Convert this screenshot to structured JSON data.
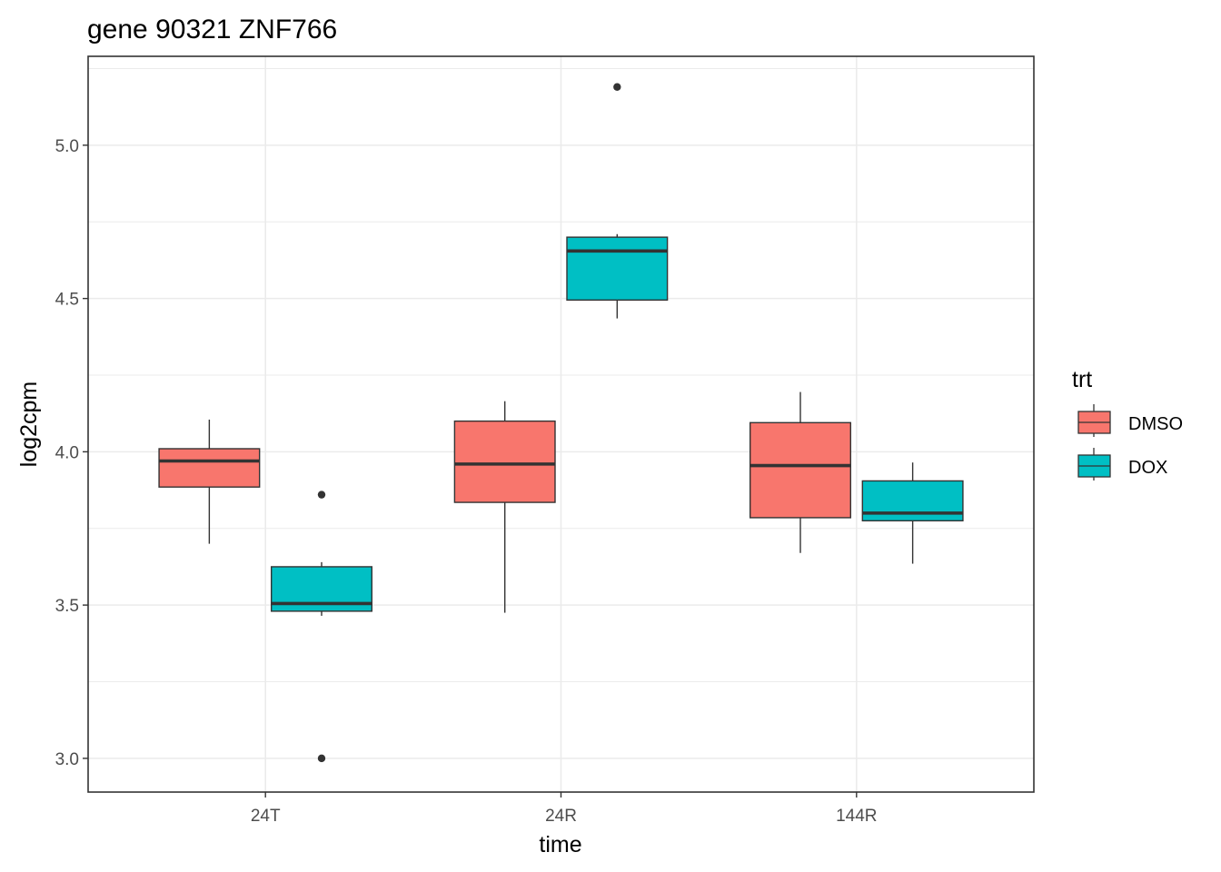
{
  "chart_data": {
    "type": "box",
    "title": "gene 90321 ZNF766",
    "xlabel": "time",
    "ylabel": "log2cpm",
    "categories": [
      "24T",
      "24R",
      "144R"
    ],
    "y_ticks": [
      "3.0",
      "3.5",
      "4.0",
      "4.5",
      "5.0"
    ],
    "ylim": [
      2.89,
      5.29
    ],
    "grid": true,
    "legend": {
      "title": "trt",
      "placement": "right"
    },
    "series": [
      {
        "name": "DMSO",
        "color": "#f8766d",
        "boxes": [
          {
            "category": "24T",
            "lower_whisker": 3.7,
            "q1": 3.885,
            "median": 3.97,
            "q3": 4.01,
            "upper_whisker": 4.105,
            "outliers": []
          },
          {
            "category": "24R",
            "lower_whisker": 3.475,
            "q1": 3.835,
            "median": 3.96,
            "q3": 4.1,
            "upper_whisker": 4.165,
            "outliers": []
          },
          {
            "category": "144R",
            "lower_whisker": 3.67,
            "q1": 3.785,
            "median": 3.955,
            "q3": 4.095,
            "upper_whisker": 4.195,
            "outliers": []
          }
        ]
      },
      {
        "name": "DOX",
        "color": "#00bfc4",
        "boxes": [
          {
            "category": "24T",
            "lower_whisker": 3.465,
            "q1": 3.48,
            "median": 3.505,
            "q3": 3.625,
            "upper_whisker": 3.64,
            "outliers": [
              3.86,
              3.0
            ]
          },
          {
            "category": "24R",
            "lower_whisker": 4.435,
            "q1": 4.495,
            "median": 4.655,
            "q3": 4.7,
            "upper_whisker": 4.71,
            "outliers": [
              5.19
            ]
          },
          {
            "category": "144R",
            "lower_whisker": 3.635,
            "q1": 3.775,
            "median": 3.8,
            "q3": 3.905,
            "upper_whisker": 3.965,
            "outliers": []
          }
        ]
      }
    ]
  }
}
